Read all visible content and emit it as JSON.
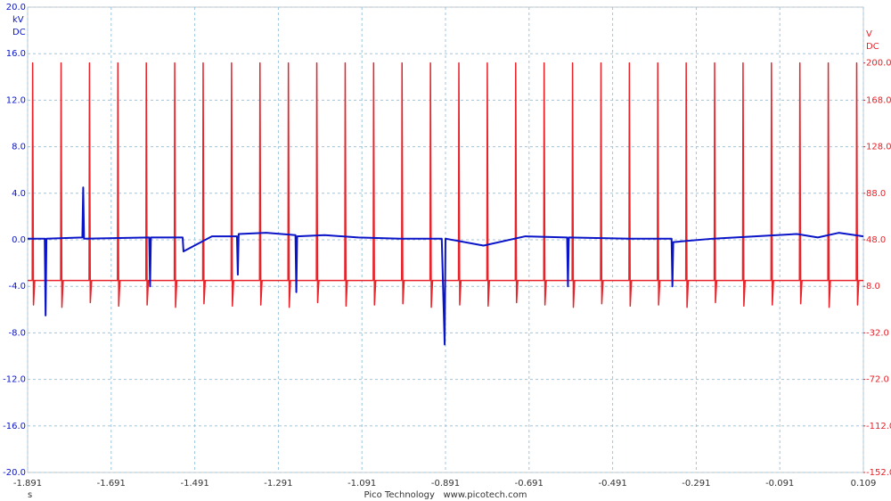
{
  "chart_data": {
    "type": "line",
    "y_axis_units": [
      "kV",
      "DC"
    ],
    "y2_axis_units": [
      "V",
      "DC"
    ],
    "x_axis_label": "s",
    "footer": "Pico Technology   www.picotech.com",
    "xlim": [
      -1.891,
      0.109
    ],
    "xticks": [
      -1.891,
      -1.691,
      -1.491,
      -1.291,
      -1.091,
      -0.891,
      -0.691,
      -0.491,
      -0.291,
      -0.091,
      0.109
    ],
    "ylim": [
      -20,
      20
    ],
    "yticks": [
      {
        "value": -20,
        "label": "-20.0"
      },
      {
        "value": -16,
        "label": "-16.0"
      },
      {
        "value": -12,
        "label": "-12.0"
      },
      {
        "value": -8,
        "label": "-8.0"
      },
      {
        "value": -4,
        "label": "-4.0"
      },
      {
        "value": 0,
        "label": "0.0"
      },
      {
        "value": 4,
        "label": "4.0"
      },
      {
        "value": 8,
        "label": "8.0"
      },
      {
        "value": 12,
        "label": "12.0"
      },
      {
        "value": 16,
        "label": "16.0"
      },
      {
        "value": 20,
        "label": "20.0"
      }
    ],
    "y2lim": [
      -152,
      248
    ],
    "y2ticks": [
      {
        "value": -152,
        "label": "-152.0"
      },
      {
        "value": -112,
        "label": "-112.0"
      },
      {
        "value": -72,
        "label": "-72.0"
      },
      {
        "value": -32,
        "label": "-32.0"
      },
      {
        "value": 8,
        "label": "8.0"
      },
      {
        "value": 48,
        "label": "48.0"
      },
      {
        "value": 88,
        "label": "88.0"
      },
      {
        "value": 128,
        "label": "128.0"
      },
      {
        "value": 168,
        "label": "168.0"
      },
      {
        "value": 200,
        "label": "200.0"
      }
    ],
    "grid": true,
    "series": [
      {
        "color": "#0a14c8",
        "x": [
          -1.891,
          -1.85,
          -1.848,
          -1.846,
          -1.76,
          -1.758,
          -1.756,
          -1.6,
          -1.598,
          -1.596,
          -1.52,
          -1.518,
          -1.45,
          -1.39,
          -1.388,
          -1.386,
          -1.32,
          -1.25,
          -1.248,
          -1.246,
          -1.18,
          -1.1,
          -1.0,
          -0.9,
          -0.893,
          -0.891,
          -0.8,
          -0.7,
          -0.6,
          -0.598,
          -0.596,
          -0.45,
          -0.35,
          -0.348,
          -0.346,
          -0.25,
          -0.15,
          -0.05,
          0,
          0.05,
          0.109
        ],
        "values": [
          0.1,
          0.1,
          -6.5,
          0.1,
          0.2,
          4.5,
          0.1,
          0.2,
          -4,
          0.2,
          0.2,
          -1,
          0.3,
          0.3,
          -3,
          0.5,
          0.6,
          0.4,
          -4.5,
          0.3,
          0.4,
          0.2,
          0.1,
          0.1,
          -9,
          0.1,
          -0.5,
          0.3,
          0.2,
          -4,
          0.2,
          0.1,
          0.1,
          -4,
          -0.2,
          0.1,
          0.3,
          0.5,
          0.2,
          0.6,
          0.3
        ]
      },
      {
        "color": "#e8232a",
        "axis": "y2",
        "x": [
          -1.891,
          -1.88,
          -1.879,
          -1.877,
          -1.874,
          -1.812,
          -1.811,
          -1.809,
          -1.806,
          -1.744,
          -1.743,
          -1.741,
          -1.738,
          -1.676,
          -1.675,
          -1.673,
          -1.67,
          -1.608,
          -1.607,
          -1.605,
          -1.602,
          -1.54,
          -1.539,
          -1.537,
          -1.534,
          -1.472,
          -1.471,
          -1.469,
          -1.466,
          -1.404,
          -1.403,
          -1.401,
          -1.398,
          -1.336,
          -1.335,
          -1.333,
          -1.33,
          -1.268,
          -1.267,
          -1.265,
          -1.262,
          -1.2,
          -1.199,
          -1.197,
          -1.194,
          -1.132,
          -1.131,
          -1.129,
          -1.126,
          -1.064,
          -1.063,
          -1.061,
          -1.058,
          -0.996,
          -0.995,
          -0.993,
          -0.99,
          -0.928,
          -0.927,
          -0.925,
          -0.922,
          -0.86,
          -0.859,
          -0.857,
          -0.854,
          -0.792,
          -0.791,
          -0.789,
          -0.786,
          -0.724,
          -0.723,
          -0.721,
          -0.718,
          -0.656,
          -0.655,
          -0.653,
          -0.65,
          -0.588,
          -0.587,
          -0.585,
          -0.582,
          -0.52,
          -0.519,
          -0.517,
          -0.514,
          -0.452,
          -0.451,
          -0.449,
          -0.446,
          -0.384,
          -0.383,
          -0.381,
          -0.378,
          -0.316,
          -0.315,
          -0.313,
          -0.31,
          -0.248,
          -0.247,
          -0.245,
          -0.242,
          -0.18,
          -0.179,
          -0.177,
          -0.174,
          -0.112,
          -0.111,
          -0.109,
          -0.106,
          -0.044,
          -0.043,
          -0.041,
          -0.038,
          0.024,
          0.025,
          0.027,
          0.03,
          0.092,
          0.093,
          0.095,
          0.098,
          0.109
        ],
        "values": [
          13,
          13,
          200,
          -8,
          13,
          13,
          200,
          -10,
          13,
          13,
          200,
          -6,
          13,
          13,
          200,
          -9,
          13,
          13,
          200,
          -8,
          13,
          13,
          200,
          -10,
          13,
          13,
          200,
          -7,
          13,
          13,
          200,
          -9,
          13,
          13,
          200,
          -8,
          13,
          13,
          200,
          -10,
          13,
          13,
          200,
          -6,
          13,
          13,
          200,
          -9,
          13,
          13,
          200,
          -8,
          13,
          13,
          200,
          -7,
          13,
          13,
          200,
          -10,
          13,
          13,
          200,
          -8,
          13,
          13,
          200,
          -9,
          13,
          13,
          200,
          -6,
          13,
          13,
          200,
          -8,
          13,
          13,
          200,
          -10,
          13,
          13,
          200,
          -7,
          13,
          13,
          200,
          -9,
          13,
          13,
          200,
          -8,
          13,
          13,
          200,
          -10,
          13,
          13,
          200,
          -6,
          13,
          13,
          200,
          -9,
          13,
          13,
          200,
          -8,
          13,
          13,
          200,
          -7,
          13,
          13,
          200,
          -10,
          13,
          13,
          200,
          -8,
          13,
          13
        ]
      }
    ]
  }
}
